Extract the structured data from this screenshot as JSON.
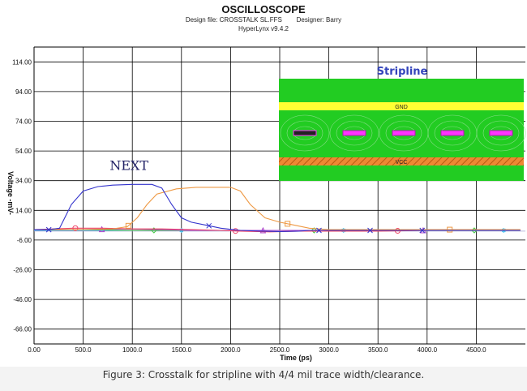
{
  "header": {
    "title": "OSCILLOSCOPE",
    "subtitle_line1": "Design file: CROSSTALK SL.FFS        Designer: Barry",
    "subtitle_line2": "HyperLynx v9.4.2"
  },
  "caption": "Figure 3: Crosstalk for stripline with 4/4 mil trace width/clearance.",
  "inset": {
    "title": "Stripline",
    "gnd_label": "GND",
    "vcc_label": "VCC",
    "colors": {
      "dielectric": "#22cc22",
      "gnd": "#ffff33",
      "vcc": "#ee8833",
      "trace": "#ff33ff",
      "title": "#3344bb"
    }
  },
  "chart_data": {
    "type": "line",
    "title": "",
    "xlabel": "Time (ps)",
    "ylabel": "Voltage -mV-",
    "xlim": [
      0,
      5000
    ],
    "ylim": [
      -76,
      124
    ],
    "x_ticks": [
      0,
      500,
      1000,
      1500,
      2000,
      2500,
      3000,
      3500,
      4000,
      4500
    ],
    "x_tick_labels": [
      "0.00",
      "500.0",
      "1000.0",
      "1500.0",
      "2000.0",
      "2500.0",
      "3000.0",
      "3500.0",
      "4000.0",
      "4500.0"
    ],
    "y_ticks": [
      114,
      94,
      74,
      54,
      34,
      14,
      -6,
      -26,
      -46,
      -66
    ],
    "y_tick_labels": [
      "114.00",
      "94.00",
      "74.00",
      "54.00",
      "34.00",
      "14.00",
      "-6.00",
      "-26.00",
      "-46.00",
      "-66.00"
    ],
    "grid": true,
    "annotations": [
      {
        "text": "NEXT",
        "x": 1000,
        "y": 40
      }
    ],
    "series": [
      {
        "color": "#3333cc",
        "marker": "x",
        "x": [
          0,
          150,
          260,
          380,
          500,
          650,
          800,
          1000,
          1200,
          1300,
          1400,
          1500,
          1600,
          1750,
          1900,
          2100,
          2300,
          2500,
          2700,
          2800,
          3000,
          3500,
          4000,
          4500,
          4950
        ],
        "y": [
          1,
          1,
          2,
          18,
          27,
          30,
          31,
          31.5,
          31.5,
          29,
          18,
          9,
          6,
          4,
          2,
          0.5,
          0,
          -0.3,
          0,
          0.5,
          0.5,
          0.5,
          0.5,
          0.5,
          0.5
        ],
        "marker_x": [
          150,
          1780,
          2900,
          3420,
          3950
        ]
      },
      {
        "color": "#ee9944",
        "marker": "square",
        "x": [
          0,
          500,
          800,
          950,
          1050,
          1150,
          1250,
          1450,
          1650,
          2000,
          2100,
          2200,
          2350,
          2500,
          2650,
          2800,
          3000,
          3500,
          4000,
          4500,
          4950
        ],
        "y": [
          1,
          1,
          1.5,
          3,
          9,
          18,
          25,
          28.5,
          29.5,
          29.5,
          27,
          18,
          9,
          6,
          4,
          2,
          1,
          1,
          1,
          1,
          1
        ],
        "marker_x": [
          960,
          2580,
          4230
        ]
      },
      {
        "color": "#ee4466",
        "marker": "circle",
        "x": [
          0,
          400,
          700,
          1000,
          1300,
          1600,
          1900,
          2100,
          2400,
          2700,
          3000,
          3500,
          4000,
          4500,
          4950
        ],
        "y": [
          1,
          2,
          2,
          1.5,
          1.5,
          1,
          0.5,
          0,
          -0.5,
          0,
          0,
          0,
          0.5,
          0.5,
          0.5
        ],
        "marker_x": [
          420,
          2050,
          3700
        ]
      },
      {
        "color": "#aa44cc",
        "marker": "triangle",
        "x": [
          0,
          500,
          900,
          1300,
          1600,
          2000,
          2500,
          3000,
          3500,
          4000,
          4500,
          4950
        ],
        "y": [
          1,
          1,
          1.5,
          1,
          0.5,
          0.5,
          0.5,
          0.5,
          0.5,
          0.5,
          0.5,
          0.5
        ],
        "marker_x": [
          690,
          2330,
          3960
        ]
      },
      {
        "color": "#44cc44",
        "marker": "diamond",
        "x": [
          0,
          500,
          1000,
          1500,
          2000,
          2500,
          3000,
          3500,
          4000,
          4500,
          4950
        ],
        "y": [
          1,
          1,
          0.5,
          0.5,
          0.5,
          0.5,
          0.5,
          0.5,
          0.5,
          0.5,
          0.5
        ],
        "marker_x": [
          1220,
          2850,
          4480
        ]
      },
      {
        "color": "#33bbee",
        "marker": "star",
        "x": [
          0,
          1000,
          2000,
          3000,
          4000,
          4950
        ],
        "y": [
          0.5,
          0.5,
          0.5,
          0.5,
          0.5,
          0.5
        ],
        "marker_x": [
          1500,
          3150,
          4780
        ]
      }
    ]
  }
}
